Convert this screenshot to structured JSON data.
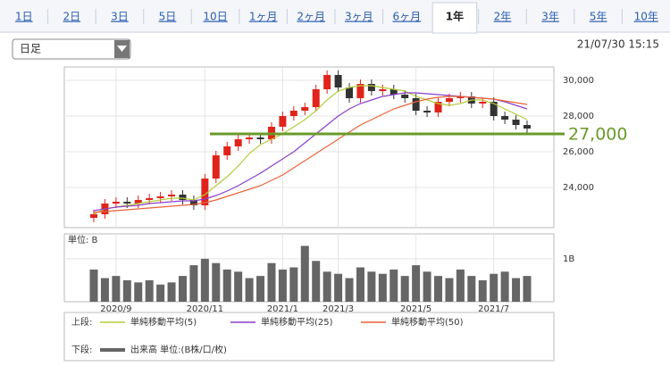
{
  "tabs": [
    {
      "label": "1日"
    },
    {
      "label": "2日"
    },
    {
      "label": "3日"
    },
    {
      "label": "5日"
    },
    {
      "label": "10日"
    },
    {
      "label": "1ヶ月"
    },
    {
      "label": "2ヶ月"
    },
    {
      "label": "3ヶ月"
    },
    {
      "label": "6ヶ月"
    },
    {
      "label": "1年",
      "selected": true
    },
    {
      "label": "2年"
    },
    {
      "label": "3年"
    },
    {
      "label": "5年"
    },
    {
      "label": "10年"
    }
  ],
  "dropdown": "日足",
  "timestamp": "21/07/30 15:15",
  "chart_data": [
    {
      "type": "candlestick",
      "categories": [
        null,
        null,
        "2020/9",
        null,
        null,
        null,
        null,
        null,
        null,
        null,
        "2020/11",
        null,
        null,
        null,
        null,
        null,
        null,
        "2021/1",
        null,
        null,
        null,
        null,
        "2021/3",
        null,
        null,
        null,
        null,
        null,
        null,
        "2021/5",
        null,
        null,
        null,
        null,
        null,
        null,
        "2021/7",
        null,
        null,
        null
      ],
      "open": [
        22300,
        22500,
        23100,
        23200,
        23100,
        23300,
        23400,
        23500,
        23600,
        23300,
        23000,
        24500,
        25800,
        26300,
        26700,
        26800,
        26700,
        27400,
        28000,
        28300,
        28500,
        29500,
        30300,
        29600,
        29000,
        29800,
        29400,
        29500,
        29200,
        29000,
        28300,
        28200,
        28800,
        29000,
        29100,
        28700,
        28800,
        28000,
        27800,
        27500
      ],
      "high": [
        22750,
        23350,
        23450,
        23450,
        23550,
        23650,
        23750,
        23850,
        23850,
        23550,
        24750,
        26050,
        26550,
        26950,
        27050,
        27050,
        27650,
        28250,
        28550,
        28750,
        29750,
        30550,
        30550,
        29850,
        30050,
        30050,
        29750,
        29750,
        29450,
        29250,
        28550,
        29050,
        29250,
        29350,
        29350,
        29050,
        29050,
        28250,
        28050,
        27750
      ],
      "low": [
        22050,
        22250,
        22850,
        22850,
        22850,
        23050,
        23150,
        23250,
        23050,
        22750,
        22750,
        24250,
        25550,
        26050,
        26450,
        26450,
        26450,
        27150,
        27750,
        28050,
        28250,
        29250,
        29350,
        28750,
        28750,
        29150,
        29150,
        28950,
        28750,
        28050,
        27950,
        27950,
        28550,
        28750,
        28450,
        28450,
        27750,
        27550,
        27250,
        27050
      ],
      "close": [
        22500,
        23100,
        23200,
        23100,
        23300,
        23400,
        23500,
        23600,
        23300,
        23000,
        24500,
        25800,
        26300,
        26700,
        26800,
        26700,
        27400,
        28000,
        28300,
        28500,
        29500,
        30300,
        29600,
        29000,
        29800,
        29400,
        29500,
        29200,
        29000,
        28300,
        28200,
        28800,
        29000,
        29100,
        28700,
        28800,
        28000,
        27800,
        27500,
        27300
      ],
      "up_color": "#e0241b",
      "down_color": "#333333",
      "series": [
        {
          "name": "単純移動平均(5)",
          "color": "#b5cc3a",
          "values": [
            22500,
            22800,
            22900,
            23000,
            23100,
            23200,
            23300,
            23400,
            23400,
            23300,
            23600,
            24100,
            24600,
            25200,
            25900,
            26400,
            26700,
            27000,
            27400,
            27800,
            28300,
            28900,
            29400,
            29600,
            29700,
            29700,
            29600,
            29500,
            29400,
            29100,
            28900,
            28700,
            28600,
            28700,
            28900,
            28900,
            28700,
            28400,
            28100,
            27800
          ]
        },
        {
          "name": "単純移動平均(25)",
          "color": "#8a3fc8",
          "values": [
            22700,
            22800,
            22900,
            22950,
            23000,
            23100,
            23150,
            23200,
            23250,
            23250,
            23350,
            23550,
            23800,
            24100,
            24450,
            24800,
            25200,
            25600,
            26000,
            26500,
            27000,
            27500,
            28000,
            28400,
            28700,
            28900,
            29100,
            29200,
            29300,
            29300,
            29250,
            29200,
            29150,
            29100,
            29050,
            29000,
            28950,
            28800,
            28600,
            28400
          ]
        },
        {
          "name": "単純移動平均(50)",
          "color": "#e8643a",
          "values": [
            22600,
            22650,
            22700,
            22750,
            22800,
            22850,
            22900,
            22950,
            23000,
            23050,
            23150,
            23300,
            23500,
            23700,
            23900,
            24100,
            24400,
            24700,
            25100,
            25500,
            25900,
            26300,
            26700,
            27100,
            27500,
            27800,
            28100,
            28400,
            28600,
            28800,
            28950,
            29050,
            29100,
            29100,
            29050,
            29000,
            28950,
            28850,
            28750,
            28650
          ]
        }
      ],
      "ylim": [
        21750,
        30750
      ],
      "yticks": [
        {
          "value": 24000,
          "label": "24,000"
        },
        {
          "value": 26000,
          "label": "26,000"
        },
        {
          "value": 28000,
          "label": "28,000"
        },
        {
          "value": 30000,
          "label": "30,000"
        }
      ],
      "reference_line": {
        "value": 27000,
        "label": "27,000",
        "color": "#6a9a2a"
      },
      "legend_label": "上段:"
    },
    {
      "type": "bar",
      "unit_label": "単位: B",
      "name": "出来高 単位:(B株/口/枚)",
      "color": "#666666",
      "legend_label": "下段:",
      "values": [
        0.75,
        0.55,
        0.6,
        0.5,
        0.45,
        0.5,
        0.4,
        0.45,
        0.6,
        0.85,
        1.0,
        0.9,
        0.75,
        0.7,
        0.55,
        0.6,
        0.9,
        0.75,
        0.8,
        1.3,
        0.95,
        0.7,
        0.65,
        0.55,
        0.8,
        0.7,
        0.65,
        0.75,
        0.6,
        0.85,
        0.7,
        0.6,
        0.55,
        0.75,
        0.6,
        0.5,
        0.65,
        0.7,
        0.55,
        0.6
      ],
      "ylim": [
        0,
        1.58
      ],
      "yticks": [
        {
          "value": 1,
          "label": "1B"
        }
      ]
    }
  ]
}
